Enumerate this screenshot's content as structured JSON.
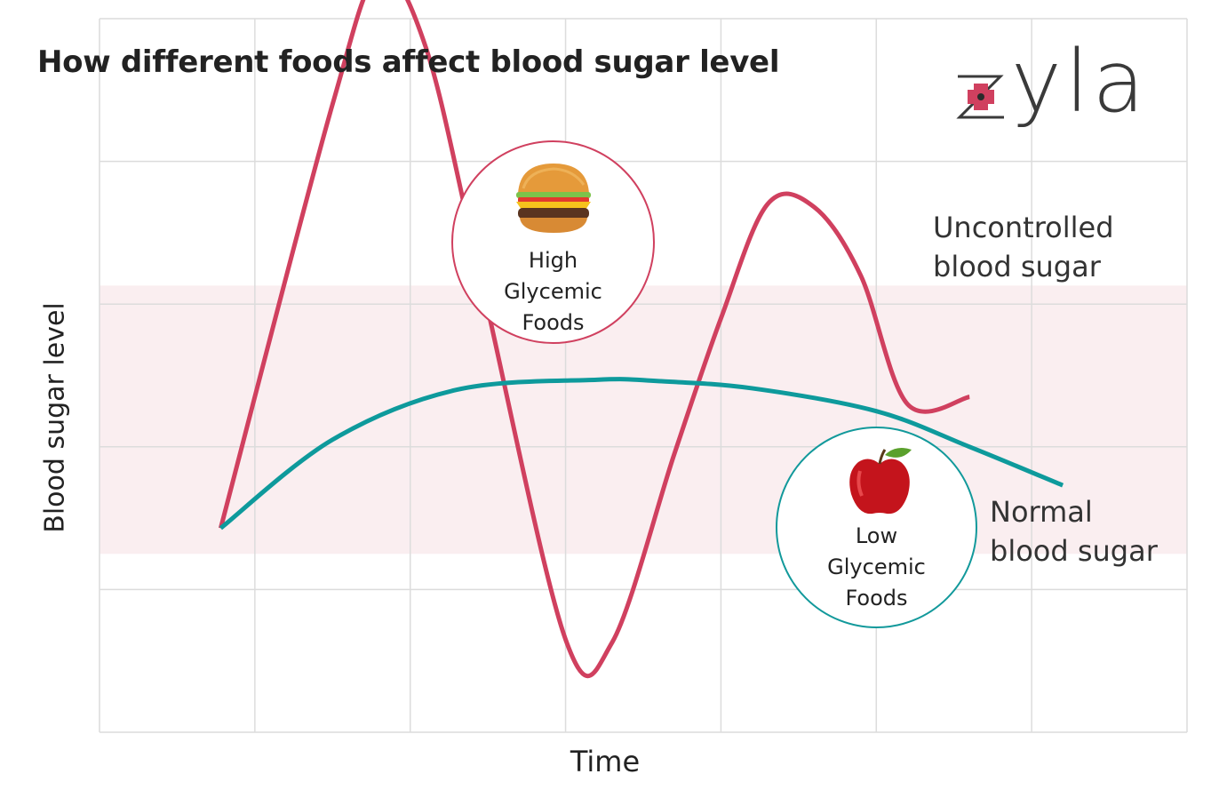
{
  "title": "How different foods affect blood sugar level",
  "brand": {
    "name": "zyla",
    "letters": "yla",
    "icon": "red-cross-z-logo"
  },
  "axes": {
    "xlabel": "Time",
    "ylabel": "Blood sugar level"
  },
  "colors": {
    "uncontrolled": "#d0405f",
    "normal": "#0e9a9c",
    "normal_band": "#faeef0",
    "grid": "#dcdcdc",
    "high_badge_border": "#d0405f",
    "low_badge_border": "#12999b"
  },
  "badges": {
    "high": {
      "line1": "High",
      "line2": "Glycemic",
      "line3": "Foods",
      "icon": "burger-icon"
    },
    "low": {
      "line1": "Low",
      "line2": "Glycemic",
      "line3": "Foods",
      "icon": "apple-icon"
    }
  },
  "labels": {
    "uncontrolled_line1": "Uncontrolled",
    "uncontrolled_line2": "blood sugar",
    "normal_line1": "Normal",
    "normal_line2": "blood sugar"
  },
  "chart_data": {
    "type": "line",
    "title": "How different foods affect blood sugar level",
    "xlabel": "Time",
    "ylabel": "Blood sugar level",
    "xlim": [
      0,
      7
    ],
    "ylim": [
      0,
      5
    ],
    "grid": true,
    "tick_labels": false,
    "normal_range": [
      1.25,
      3.13
    ],
    "series": [
      {
        "name": "Uncontrolled blood sugar",
        "x": [
          0.78,
          1.5,
          1.8,
          2.1,
          2.45,
          3.0,
          3.3,
          3.7,
          4.0,
          4.3,
          4.6,
          4.9,
          5.2,
          5.6
        ],
        "y": [
          1.43,
          4.4,
          5.3,
          4.8,
          3.2,
          0.65,
          0.63,
          1.95,
          2.9,
          3.7,
          3.68,
          3.2,
          2.3,
          2.35
        ]
      },
      {
        "name": "Normal blood sugar",
        "x": [
          0.78,
          1.5,
          2.3,
          3.2,
          3.6,
          4.2,
          5.0,
          5.6,
          6.2
        ],
        "y": [
          1.43,
          2.05,
          2.4,
          2.47,
          2.46,
          2.41,
          2.25,
          2.0,
          1.73
        ]
      }
    ]
  }
}
